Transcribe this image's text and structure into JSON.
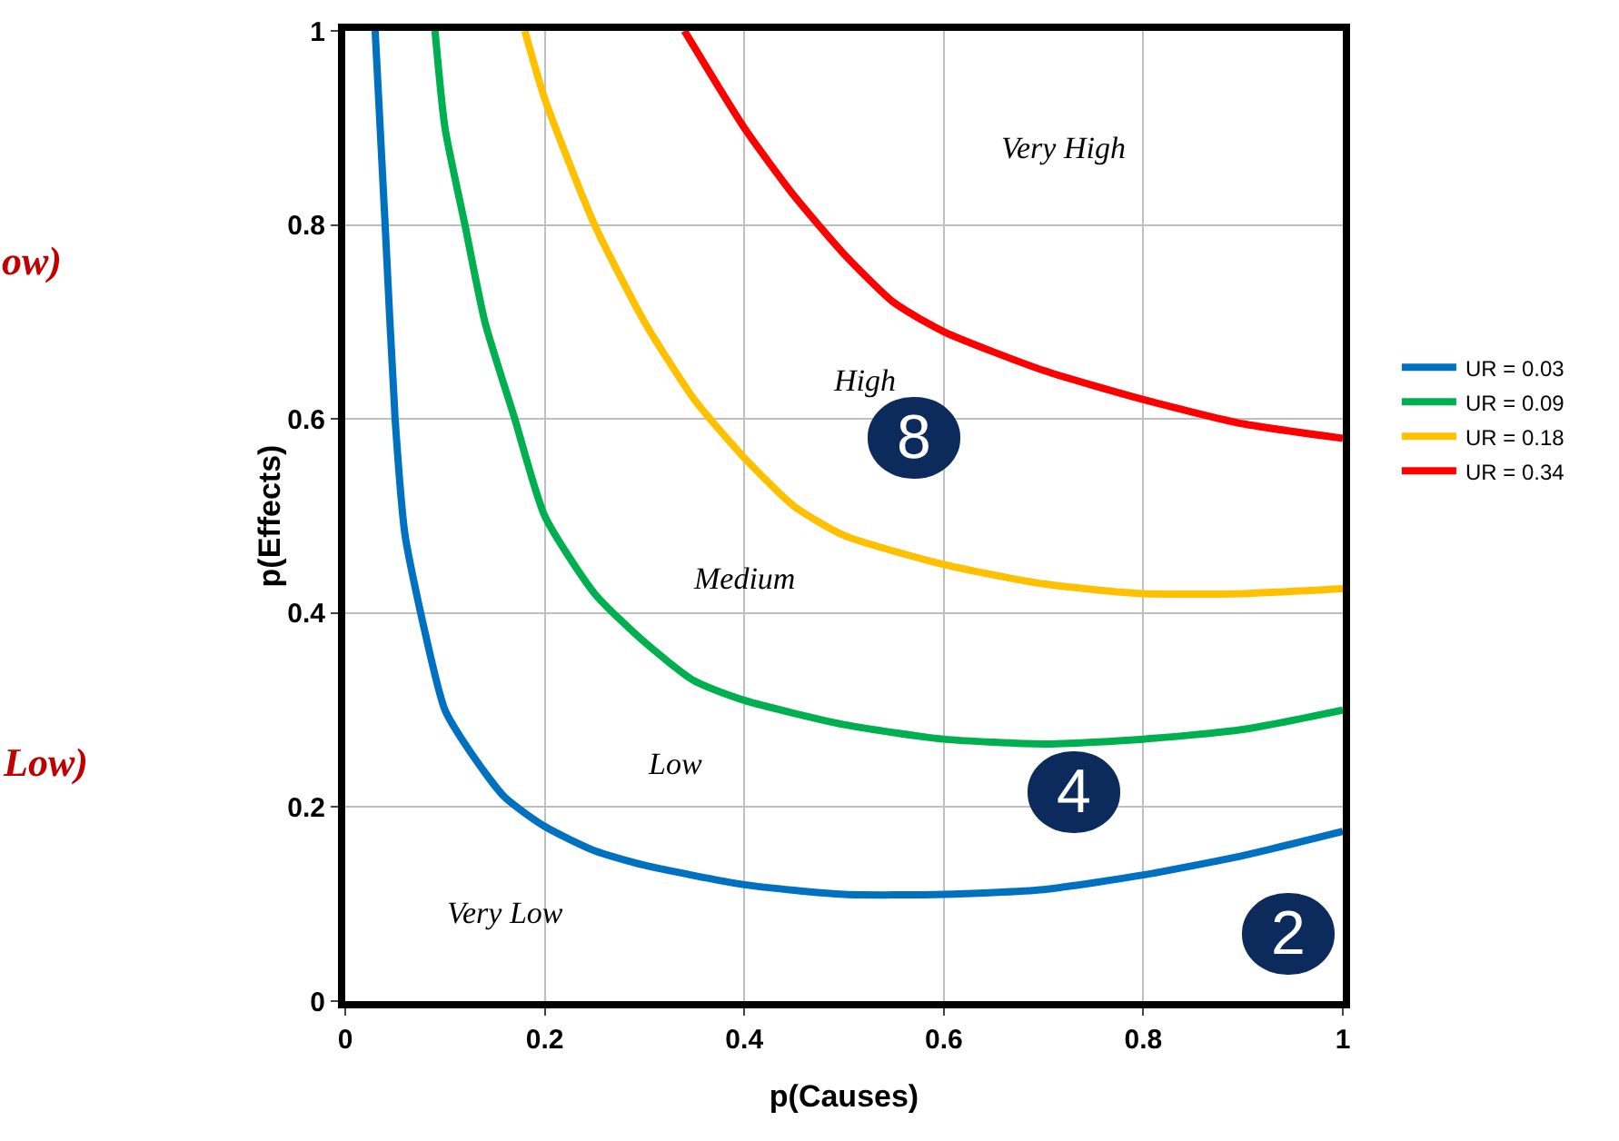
{
  "chart_data": {
    "type": "line",
    "xlabel": "p(Causes)",
    "ylabel": "p(Effects)",
    "xlim": [
      0,
      1
    ],
    "ylim": [
      0,
      1
    ],
    "xticks": [
      0,
      0.2,
      0.4,
      0.6,
      0.8,
      1
    ],
    "yticks": [
      0,
      0.2,
      0.4,
      0.6,
      0.8,
      1
    ],
    "grid": true,
    "legend": "right",
    "marker": "none",
    "line_style": "solid",
    "series": [
      {
        "name": "UR = 0.03",
        "color": "#0070c0",
        "x": [
          0.03,
          0.04,
          0.05,
          0.06,
          0.08,
          0.1,
          0.13,
          0.16,
          0.2,
          0.25,
          0.3,
          0.4,
          0.5,
          0.6,
          0.7,
          0.8,
          0.9,
          1
        ],
        "values": [
          1,
          0.8,
          0.6,
          0.48,
          0.38,
          0.3,
          0.25,
          0.21,
          0.18,
          0.155,
          0.14,
          0.12,
          0.11,
          0.11,
          0.115,
          0.13,
          0.15,
          0.175
        ]
      },
      {
        "name": "UR = 0.09",
        "color": "#00b050",
        "x": [
          0.09,
          0.1,
          0.12,
          0.14,
          0.17,
          0.2,
          0.25,
          0.3,
          0.35,
          0.4,
          0.5,
          0.6,
          0.7,
          0.8,
          0.9,
          1
        ],
        "values": [
          1,
          0.9,
          0.8,
          0.7,
          0.6,
          0.5,
          0.42,
          0.37,
          0.33,
          0.31,
          0.285,
          0.27,
          0.265,
          0.27,
          0.28,
          0.3
        ]
      },
      {
        "name": "UR = 0.18",
        "color": "#ffc000",
        "x": [
          0.18,
          0.2,
          0.25,
          0.3,
          0.35,
          0.4,
          0.45,
          0.5,
          0.6,
          0.7,
          0.8,
          0.9,
          1
        ],
        "values": [
          1,
          0.93,
          0.8,
          0.7,
          0.62,
          0.56,
          0.51,
          0.48,
          0.45,
          0.43,
          0.42,
          0.42,
          0.425
        ]
      },
      {
        "name": "UR = 0.34",
        "color": "#ff0000",
        "x": [
          0.34,
          0.4,
          0.45,
          0.5,
          0.55,
          0.6,
          0.7,
          0.8,
          0.9,
          1
        ],
        "values": [
          1,
          0.9,
          0.83,
          0.77,
          0.72,
          0.69,
          0.65,
          0.62,
          0.595,
          0.58
        ]
      }
    ],
    "annotations": [
      "Very High",
      "High",
      "Medium",
      "Low",
      "Very Low",
      "8",
      "4",
      "2",
      "ow)",
      "Low)"
    ]
  }
}
